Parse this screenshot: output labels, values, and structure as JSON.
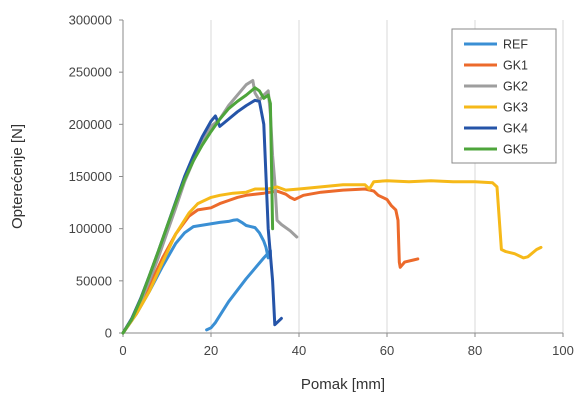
{
  "chart_data": {
    "type": "line",
    "title": "",
    "xlabel": "Pomak [mm]",
    "ylabel": "Opterećenje [N]",
    "xlim": [
      0,
      100
    ],
    "ylim": [
      0,
      300000
    ],
    "xticks": [
      0,
      20,
      40,
      60,
      80,
      100
    ],
    "yticks": [
      0,
      50000,
      100000,
      150000,
      200000,
      250000,
      300000
    ],
    "grid": "vertical",
    "legend_position": "top-right",
    "series": [
      {
        "name": "REF",
        "color": "#3a8fd4",
        "points": [
          [
            0,
            0
          ],
          [
            3,
            18000
          ],
          [
            6,
            40000
          ],
          [
            9,
            64000
          ],
          [
            12,
            86000
          ],
          [
            14,
            96000
          ],
          [
            16,
            102000
          ],
          [
            19,
            104000
          ],
          [
            22,
            106000
          ],
          [
            24,
            107000
          ],
          [
            25,
            108000
          ],
          [
            26,
            108500
          ],
          [
            27,
            106000
          ],
          [
            28,
            103000
          ],
          [
            29,
            102000
          ],
          [
            30,
            101000
          ],
          [
            31,
            96000
          ],
          [
            32,
            88000
          ],
          [
            32.5,
            82000
          ],
          [
            33,
            72000
          ],
          [
            33.5,
            75000
          ],
          [
            33.5,
            79000
          ],
          [
            32,
            72000
          ],
          [
            28,
            52000
          ],
          [
            24,
            30000
          ],
          [
            21,
            10000
          ],
          [
            20,
            5000
          ],
          [
            19,
            3000
          ]
        ]
      },
      {
        "name": "GK1",
        "color": "#ec6a2b",
        "points": [
          [
            0,
            0
          ],
          [
            3,
            20000
          ],
          [
            6,
            45000
          ],
          [
            9,
            72000
          ],
          [
            12,
            95000
          ],
          [
            15,
            112000
          ],
          [
            17,
            118000
          ],
          [
            20,
            120000
          ],
          [
            22,
            124000
          ],
          [
            24,
            127000
          ],
          [
            26,
            130000
          ],
          [
            28,
            132000
          ],
          [
            30,
            133000
          ],
          [
            32,
            134000
          ],
          [
            35,
            136000
          ],
          [
            37,
            133000
          ],
          [
            38,
            130000
          ],
          [
            39,
            128000
          ],
          [
            41,
            132000
          ],
          [
            45,
            135000
          ],
          [
            50,
            137000
          ],
          [
            55,
            138000
          ],
          [
            57,
            136000
          ],
          [
            58,
            132000
          ],
          [
            60,
            128000
          ],
          [
            61,
            122000
          ],
          [
            62,
            118000
          ],
          [
            62.5,
            108000
          ],
          [
            62.8,
            68000
          ],
          [
            63,
            63000
          ],
          [
            64,
            68000
          ],
          [
            66,
            70000
          ],
          [
            67,
            71000
          ]
        ]
      },
      {
        "name": "GK2",
        "color": "#9e9e9e",
        "points": [
          [
            0,
            0
          ],
          [
            2,
            12000
          ],
          [
            4,
            30000
          ],
          [
            6,
            50000
          ],
          [
            8,
            72000
          ],
          [
            10,
            96000
          ],
          [
            12,
            120000
          ],
          [
            14,
            145000
          ],
          [
            16,
            165000
          ],
          [
            18,
            182000
          ],
          [
            20,
            198000
          ],
          [
            22,
            205000
          ],
          [
            24,
            218000
          ],
          [
            26,
            228000
          ],
          [
            28,
            238000
          ],
          [
            29.5,
            242000
          ],
          [
            30,
            230000
          ],
          [
            31,
            223000
          ],
          [
            32,
            228000
          ],
          [
            33,
            232000
          ],
          [
            33.5,
            210000
          ],
          [
            34,
            170000
          ],
          [
            34.5,
            145000
          ],
          [
            35,
            108000
          ],
          [
            36,
            104000
          ],
          [
            38,
            98000
          ],
          [
            39.5,
            92000
          ]
        ]
      },
      {
        "name": "GK3",
        "color": "#f6b919",
        "points": [
          [
            0,
            0
          ],
          [
            3,
            18000
          ],
          [
            6,
            40000
          ],
          [
            9,
            68000
          ],
          [
            12,
            95000
          ],
          [
            15,
            115000
          ],
          [
            17,
            124000
          ],
          [
            20,
            130000
          ],
          [
            22,
            132000
          ],
          [
            25,
            134000
          ],
          [
            28,
            135000
          ],
          [
            30,
            138000
          ],
          [
            33,
            138000
          ],
          [
            35,
            140000
          ],
          [
            37,
            137000
          ],
          [
            40,
            138000
          ],
          [
            45,
            140000
          ],
          [
            50,
            142000
          ],
          [
            55,
            142000
          ],
          [
            56,
            138000
          ],
          [
            57,
            145000
          ],
          [
            60,
            146000
          ],
          [
            65,
            145000
          ],
          [
            70,
            146000
          ],
          [
            75,
            145000
          ],
          [
            80,
            145000
          ],
          [
            84,
            144000
          ],
          [
            85,
            140000
          ],
          [
            86,
            80000
          ],
          [
            87,
            78000
          ],
          [
            89,
            76000
          ],
          [
            91,
            72000
          ],
          [
            92,
            73000
          ],
          [
            94,
            80000
          ],
          [
            95,
            82000
          ]
        ]
      },
      {
        "name": "GK4",
        "color": "#2554a8",
        "points": [
          [
            0,
            0
          ],
          [
            2,
            14000
          ],
          [
            4,
            33000
          ],
          [
            6,
            55000
          ],
          [
            8,
            78000
          ],
          [
            10,
            102000
          ],
          [
            12,
            126000
          ],
          [
            14,
            150000
          ],
          [
            16,
            170000
          ],
          [
            18,
            188000
          ],
          [
            20,
            203000
          ],
          [
            21,
            208000
          ],
          [
            22,
            198000
          ],
          [
            24,
            205000
          ],
          [
            26,
            212000
          ],
          [
            28,
            218000
          ],
          [
            30,
            223000
          ],
          [
            31,
            222000
          ],
          [
            32,
            200000
          ],
          [
            32.5,
            150000
          ],
          [
            33,
            100000
          ],
          [
            34,
            50000
          ],
          [
            34.5,
            8000
          ],
          [
            36,
            14000
          ]
        ]
      },
      {
        "name": "GK5",
        "color": "#4ea53b",
        "points": [
          [
            0,
            0
          ],
          [
            2,
            13000
          ],
          [
            4,
            32000
          ],
          [
            6,
            55000
          ],
          [
            8,
            78000
          ],
          [
            10,
            102000
          ],
          [
            12,
            125000
          ],
          [
            14,
            147000
          ],
          [
            16,
            165000
          ],
          [
            18,
            180000
          ],
          [
            20,
            193000
          ],
          [
            22,
            205000
          ],
          [
            24,
            215000
          ],
          [
            26,
            222000
          ],
          [
            28,
            228000
          ],
          [
            30,
            235000
          ],
          [
            31,
            232000
          ],
          [
            32,
            225000
          ],
          [
            33,
            228000
          ],
          [
            33.5,
            220000
          ],
          [
            34,
            100000
          ]
        ]
      }
    ]
  }
}
